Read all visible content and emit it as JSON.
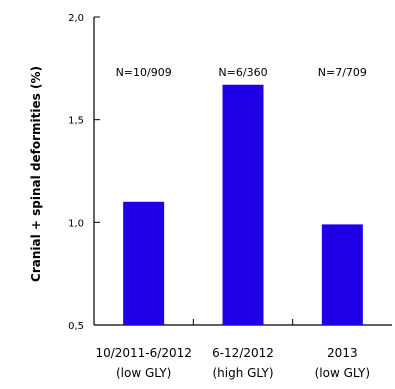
{
  "chart_data": {
    "type": "bar",
    "title": "",
    "xlabel": "",
    "ylabel": "Cranial + spinal deformities (%)",
    "ylim": [
      0.5,
      2.0
    ],
    "yticks": [
      {
        "value": 0.5,
        "label": "0,5"
      },
      {
        "value": 1.0,
        "label": "1,0"
      },
      {
        "value": 1.5,
        "label": "1,5"
      },
      {
        "value": 2.0,
        "label": "2,0"
      }
    ],
    "categories": [
      {
        "line1": "10/2011-6/2012",
        "line2": "(low GLY)"
      },
      {
        "line1": "6-12/2012",
        "line2": "(high GLY)"
      },
      {
        "line1": "2013",
        "line2": "(low GLY)"
      }
    ],
    "values": [
      1.1,
      1.67,
      0.99
    ],
    "annotations": [
      "N=10/909",
      "N=6/360",
      "N=7/709"
    ],
    "bar_color": "#1f00e6",
    "grid": false,
    "legend": "none"
  }
}
